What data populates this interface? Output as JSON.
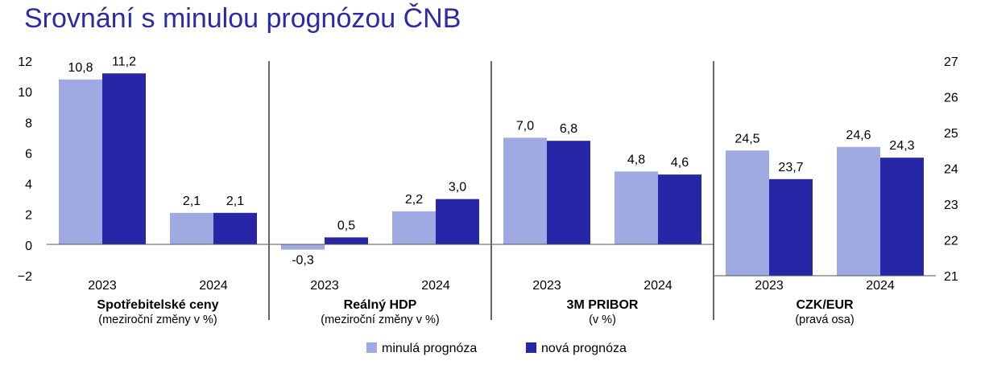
{
  "chart_data": {
    "type": "bar",
    "title": "Srovnání s minulou prognózou ČNB",
    "series": [
      {
        "name": "minulá prognóza",
        "color": "#a0aae2"
      },
      {
        "name": "nová prognóza",
        "color": "#2626a6"
      }
    ],
    "left_axis": {
      "ticks": [
        "12",
        "10",
        "8",
        "6",
        "4",
        "2",
        "0",
        "−2"
      ],
      "ylim": [
        -2,
        12
      ]
    },
    "right_axis": {
      "ticks": [
        "27",
        "26",
        "25",
        "24",
        "23",
        "22",
        "21"
      ],
      "ylim": [
        21,
        27
      ]
    },
    "grid": false,
    "legend_position": "bottom-center",
    "groups": [
      {
        "name": "Spotřebitelské ceny",
        "note": "(meziroční změny v %)",
        "axis": "left",
        "categories": [
          "2023",
          "2024"
        ],
        "values": [
          [
            10.8,
            11.2
          ],
          [
            2.1,
            2.1
          ]
        ],
        "labels": [
          [
            "10,8",
            "11,2"
          ],
          [
            "2,1",
            "2,1"
          ]
        ]
      },
      {
        "name": "Reálný HDP",
        "note": "(meziroční změny v %)",
        "axis": "left",
        "categories": [
          "2023",
          "2024"
        ],
        "values": [
          [
            -0.3,
            0.5
          ],
          [
            2.2,
            3.0
          ]
        ],
        "labels": [
          [
            "-0,3",
            "0,5"
          ],
          [
            "2,2",
            "3,0"
          ]
        ]
      },
      {
        "name": "3M PRIBOR",
        "note": "(v %)",
        "axis": "left",
        "categories": [
          "2023",
          "2024"
        ],
        "values": [
          [
            7.0,
            6.8
          ],
          [
            4.8,
            4.6
          ]
        ],
        "labels": [
          [
            "7,0",
            "6,8"
          ],
          [
            "4,8",
            "4,6"
          ]
        ]
      },
      {
        "name": "CZK/EUR",
        "note": "(pravá osa)",
        "axis": "right",
        "categories": [
          "2023",
          "2024"
        ],
        "values": [
          [
            24.5,
            23.7
          ],
          [
            24.6,
            24.3
          ]
        ],
        "labels": [
          [
            "24,5",
            "23,7"
          ],
          [
            "24,6",
            "24,3"
          ]
        ]
      }
    ]
  }
}
